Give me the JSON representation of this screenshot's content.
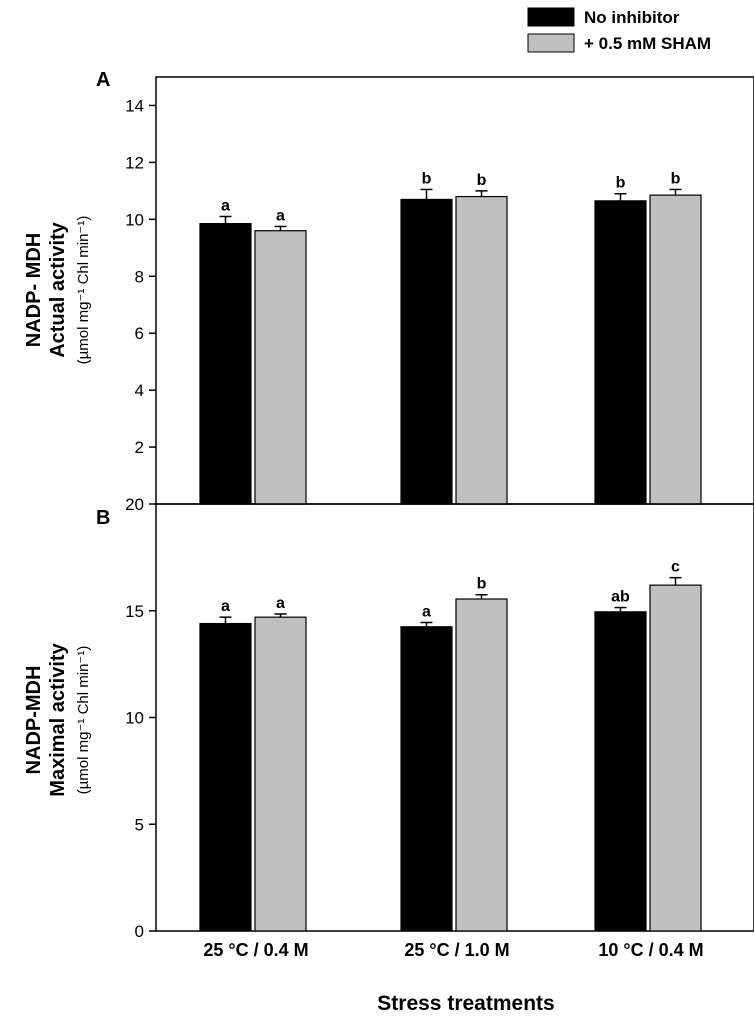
{
  "legend": [
    {
      "label": "No inhibitor",
      "color": "#000000"
    },
    {
      "label": "+ 0.5 mM SHAM",
      "color": "#c0c0c0"
    }
  ],
  "xlabel": "Stress treatments",
  "categories": [
    "25 °C / 0.4 M",
    "25 °C / 1.0 M",
    "10 °C / 0.4 M"
  ],
  "chart_data": [
    {
      "type": "bar",
      "panel": "A",
      "ylabel_main": [
        "NADP- MDH",
        "Actual activity"
      ],
      "ylabel_unit": "(µmol mg⁻¹ Chl min⁻¹)",
      "categories": [
        "25 °C / 0.4 M",
        "25 °C / 1.0 M",
        "10 °C / 0.4 M"
      ],
      "series": [
        {
          "name": "No inhibitor",
          "values": [
            9.85,
            10.7,
            10.65
          ],
          "errors": [
            0.25,
            0.35,
            0.25
          ],
          "labels": [
            "a",
            "b",
            "b"
          ]
        },
        {
          "name": "+ 0.5 mM SHAM",
          "values": [
            9.6,
            10.8,
            10.85
          ],
          "errors": [
            0.15,
            0.2,
            0.2
          ],
          "labels": [
            "a",
            "b",
            "b"
          ]
        }
      ],
      "ylim": [
        0,
        15
      ],
      "yticks": [
        2,
        4,
        6,
        8,
        10,
        12,
        14
      ],
      "ytick_labels": [
        "2",
        "4",
        "6",
        "8",
        "10",
        "12",
        "14"
      ],
      "grid": false
    },
    {
      "type": "bar",
      "panel": "B",
      "ylabel_main": [
        "NADP-MDH",
        "Maximal activity"
      ],
      "ylabel_unit": "(µmol mg⁻¹ Chl min⁻¹)",
      "categories": [
        "25 °C / 0.4 M",
        "25 °C / 1.0 M",
        "10 °C / 0.4 M"
      ],
      "series": [
        {
          "name": "No inhibitor",
          "values": [
            14.4,
            14.25,
            14.95
          ],
          "errors": [
            0.3,
            0.2,
            0.2
          ],
          "labels": [
            "a",
            "a",
            "ab"
          ]
        },
        {
          "name": "+ 0.5 mM SHAM",
          "values": [
            14.7,
            15.55,
            16.2
          ],
          "errors": [
            0.15,
            0.2,
            0.35
          ],
          "labels": [
            "a",
            "b",
            "c"
          ]
        }
      ],
      "ylim": [
        0,
        20
      ],
      "yticks": [
        0,
        5,
        10,
        15,
        20
      ],
      "ytick_labels": [
        "0",
        "5",
        "10",
        "15",
        "20"
      ],
      "grid": false
    }
  ]
}
